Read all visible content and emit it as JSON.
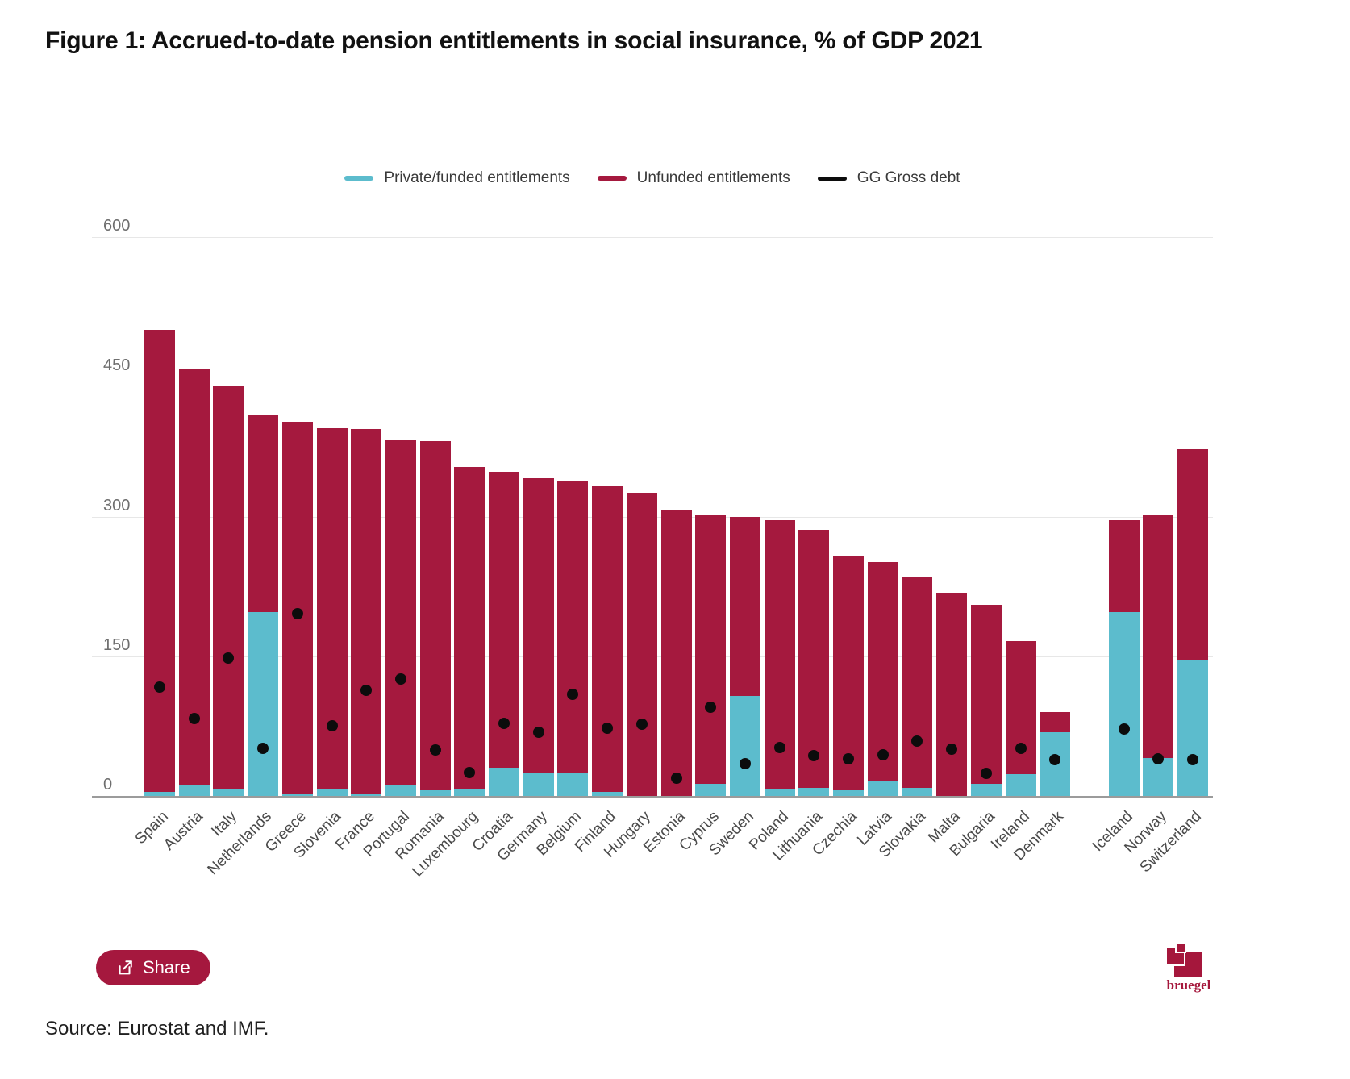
{
  "title": "Figure 1: Accrued-to-date pension entitlements in social insurance, % of GDP 2021",
  "legend": [
    {
      "id": "funded",
      "label": "Private/funded entitlements",
      "color": "#5cbccd"
    },
    {
      "id": "unfunded",
      "label": "Unfunded entitlements",
      "color": "#a5193e"
    },
    {
      "id": "debt",
      "label": "GG Gross debt",
      "color": "#0c0c0c"
    }
  ],
  "colors": {
    "funded": "#5cbccd",
    "unfunded": "#a5193e",
    "debt_dot": "#0c0c0c",
    "accent_red": "#a5183e"
  },
  "chart_data": {
    "type": "bar",
    "stacked": true,
    "unit": "% of GDP",
    "ylim": [
      0,
      600
    ],
    "yticks": [
      0,
      150,
      300,
      450,
      600
    ],
    "grid": "horizontal",
    "legend_position": "top",
    "gap_after_index": 26,
    "categories": [
      "Spain",
      "Austria",
      "Italy",
      "Netherlands",
      "Greece",
      "Slovenia",
      "France",
      "Portugal",
      "Romania",
      "Luxembourg",
      "Croatia",
      "Germany",
      "Belgium",
      "Finland",
      "Hungary",
      "Estonia",
      "Cyprus",
      "Sweden",
      "Poland",
      "Lithuania",
      "Czechia",
      "Latvia",
      "Slovakia",
      "Malta",
      "Bulgaria",
      "Ireland",
      "Denmark",
      "Iceland",
      "Norway",
      "Switzerland"
    ],
    "series": [
      {
        "name": "Private/funded entitlements",
        "type": "bar-segment",
        "values": [
          4,
          11,
          7,
          197,
          3,
          8,
          2,
          11,
          6,
          7,
          30,
          25,
          25,
          4,
          0,
          0,
          13,
          107,
          8,
          9,
          6,
          16,
          9,
          0,
          13,
          23,
          68,
          197,
          41,
          145
        ]
      },
      {
        "name": "Unfunded entitlements",
        "type": "bar-segment",
        "values": [
          496,
          447,
          432,
          212,
          398,
          386,
          391,
          370,
          374,
          346,
          318,
          316,
          312,
          328,
          325,
          306,
          288,
          192,
          288,
          276,
          251,
          235,
          226,
          218,
          192,
          143,
          22,
          99,
          261,
          227
        ]
      },
      {
        "name": "Total entitlements",
        "type": "derived-total",
        "values": [
          500,
          458,
          439,
          409,
          401,
          394,
          393,
          381,
          380,
          353,
          348,
          341,
          337,
          332,
          325,
          306,
          301,
          299,
          296,
          285,
          257,
          251,
          235,
          218,
          205,
          166,
          90,
          296,
          302,
          372
        ]
      },
      {
        "name": "GG Gross debt",
        "type": "point",
        "values": [
          117,
          83,
          148,
          51,
          195,
          75,
          113,
          125,
          49,
          25,
          78,
          68,
          109,
          73,
          77,
          19,
          95,
          35,
          52,
          43,
          40,
          44,
          59,
          50,
          24,
          51,
          39,
          72,
          40,
          39
        ]
      }
    ]
  },
  "footer": {
    "share_label": "Share",
    "brand": "bruegel",
    "source": "Source: Eurostat and IMF."
  }
}
